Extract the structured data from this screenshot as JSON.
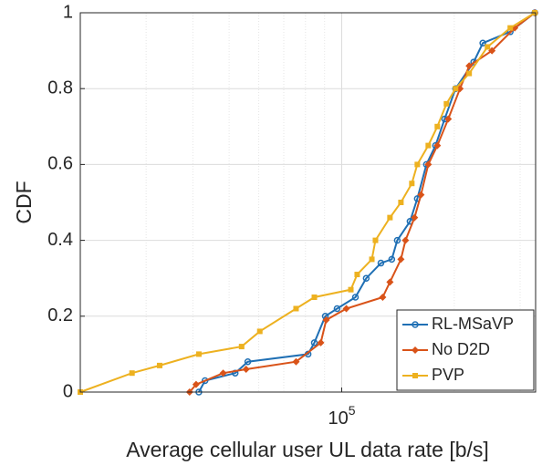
{
  "chart_data": {
    "type": "line",
    "xlabel": "Average cellular user UL data rate [b/s]",
    "ylabel": "CDF",
    "xscale": "log",
    "xlim": [
      20000,
      330000
    ],
    "xticks": [
      {
        "value": 100000,
        "label": "10^5"
      }
    ],
    "ylim": [
      0,
      1
    ],
    "yticks": [
      0,
      0.2,
      0.4,
      0.6,
      0.8,
      1
    ],
    "grid": true,
    "legend": "lower right",
    "series": [
      {
        "name": "RL-MSaVP",
        "color": "#1f6fb4",
        "marker": "circle",
        "x": [
          41500,
          43100,
          51900,
          56100,
          81300,
          84500,
          90400,
          97200,
          108800,
          116300,
          127300,
          136100,
          140800,
          152300,
          159300,
          168500,
          178200,
          188500,
          201600,
          225400,
          238400,
          282300,
          328400
        ],
        "values": [
          0,
          0.03,
          0.05,
          0.08,
          0.1,
          0.13,
          0.2,
          0.22,
          0.25,
          0.3,
          0.34,
          0.35,
          0.4,
          0.45,
          0.51,
          0.6,
          0.65,
          0.72,
          0.8,
          0.87,
          0.92,
          0.95,
          1.0
        ]
      },
      {
        "name": "No D2D",
        "color": "#d95319",
        "marker": "diamond",
        "x": [
          39200,
          40800,
          48200,
          55500,
          75500,
          87900,
          90900,
          102900,
          128700,
          134600,
          144000,
          148100,
          156600,
          162900,
          170400,
          180200,
          192700,
          207200,
          219200,
          252200,
          290200,
          328400
        ],
        "values": [
          0,
          0.02,
          0.05,
          0.06,
          0.08,
          0.13,
          0.19,
          0.22,
          0.25,
          0.29,
          0.35,
          0.4,
          0.46,
          0.52,
          0.6,
          0.65,
          0.72,
          0.8,
          0.86,
          0.9,
          0.96,
          1.0
        ]
      },
      {
        "name": "PVP",
        "color": "#edb120",
        "marker": "square",
        "x": [
          20000,
          27500,
          32600,
          41500,
          54000,
          60400,
          75500,
          84500,
          105800,
          110000,
          120400,
          123100,
          134600,
          144000,
          154000,
          159300,
          170400,
          180200,
          190600,
          201600,
          219200,
          245400,
          282300,
          328400
        ],
        "values": [
          0,
          0.05,
          0.07,
          0.1,
          0.12,
          0.16,
          0.22,
          0.25,
          0.27,
          0.31,
          0.35,
          0.4,
          0.46,
          0.5,
          0.55,
          0.6,
          0.65,
          0.7,
          0.76,
          0.8,
          0.84,
          0.91,
          0.96,
          1.0
        ]
      }
    ]
  }
}
